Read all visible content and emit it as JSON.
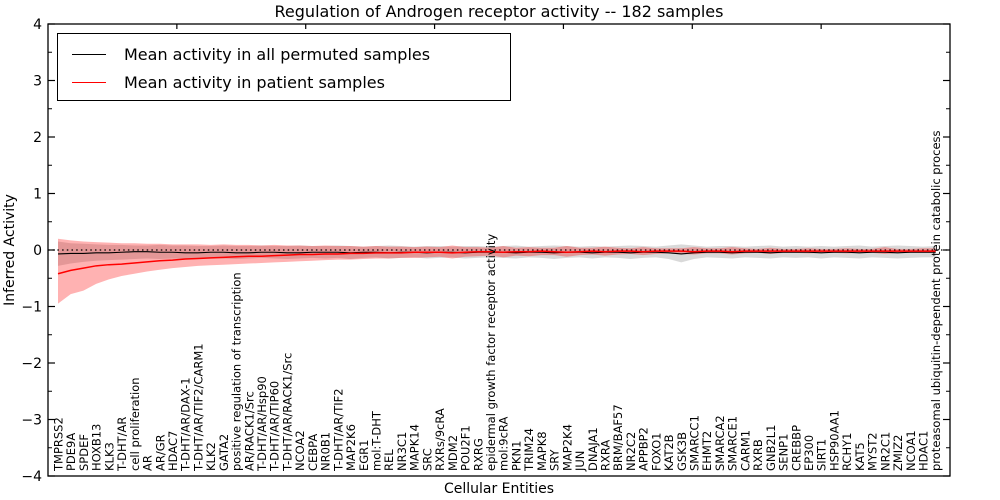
{
  "title": "Regulation of Androgen receptor activity -- 182 samples",
  "axes": {
    "xlabel": "Cellular Entities",
    "ylabel": "Inferred Activity",
    "yticks": [
      {
        "value": 4,
        "label": "4"
      },
      {
        "value": 3,
        "label": "3"
      },
      {
        "value": 2,
        "label": "2"
      },
      {
        "value": 1,
        "label": "1"
      },
      {
        "value": 0,
        "label": "0"
      },
      {
        "value": -1,
        "label": "−1"
      },
      {
        "value": -2,
        "label": "−2"
      },
      {
        "value": -3,
        "label": "−3"
      },
      {
        "value": -4,
        "label": "−4"
      }
    ]
  },
  "legend": {
    "items": [
      {
        "label": "Mean activity in all permuted samples",
        "color": "#000000"
      },
      {
        "label": "Mean activity in patient samples",
        "color": "#ff0000"
      }
    ]
  },
  "chart_data": {
    "type": "line",
    "title": "Regulation of Androgen receptor activity -- 182 samples",
    "xlabel": "Cellular Entities",
    "ylabel": "Inferred Activity",
    "ylim": [
      -4,
      4
    ],
    "grid": false,
    "legend_position": "upper left",
    "reference_line": {
      "y": 0,
      "style": "dotted",
      "color": "#000000"
    },
    "categories": [
      "TMPRSS2",
      "PDE9A",
      "SPDEF",
      "HOXB13",
      "KLK3",
      "T-DHT/AR",
      "cell proliferation",
      "AR",
      "AR/GR",
      "HDAC7",
      "T-DHT/AR/DAX-1",
      "T-DHT/AR/TIF2/CARM1",
      "KLK2",
      "GATA2",
      "positive regulation of transcription",
      "AR/RACK1/Src",
      "T-DHT/AR/Hsp90",
      "T-DHT/AR/TIP60",
      "T-DHT/AR/RACK1/Src",
      "NCOA2",
      "CEBPA",
      "NR0B1",
      "T-DHT/AR/TIF2",
      "MAP2K6",
      "EGR1",
      "mol:T-DHT",
      "REL",
      "NR3C1",
      "MAPK14",
      "SRC",
      "RXRs/9cRA",
      "MDM2",
      "POU2F1",
      "RXRG",
      "epidermal growth factor receptor activity",
      "mol:9cRA",
      "PKN1",
      "TRIM24",
      "MAPK8",
      "SRY",
      "MAP2K4",
      "JUN",
      "DNAJA1",
      "RXRA",
      "BRM/BAF57",
      "NR2C2",
      "APPBP2",
      "FOXO1",
      "KAT2B",
      "GSK3B",
      "SMARCC1",
      "EHMT2",
      "SMARCA2",
      "SMARCE1",
      "CARM1",
      "RXRB",
      "GNB2L1",
      "SENP1",
      "CREBBP",
      "EP300",
      "SIRT1",
      "HSP90AA1",
      "RCHY1",
      "KAT5",
      "MYST2",
      "NR2C1",
      "ZMIZ2",
      "NCOA1",
      "HDAC1",
      "proteasomal ubiquitin-dependent protein catabolic process"
    ],
    "series": [
      {
        "name": "Mean activity in all permuted samples",
        "line_color": "#000000",
        "band_color": "rgba(0,0,0,0.15)",
        "mean": [
          -0.07,
          -0.06,
          -0.06,
          -0.05,
          -0.05,
          -0.04,
          -0.03,
          -0.03,
          -0.04,
          -0.04,
          -0.05,
          -0.05,
          -0.04,
          -0.04,
          -0.05,
          -0.05,
          -0.04,
          -0.04,
          -0.05,
          -0.05,
          -0.04,
          -0.04,
          -0.04,
          -0.05,
          -0.04,
          -0.04,
          -0.05,
          -0.04,
          -0.04,
          -0.05,
          -0.04,
          -0.04,
          -0.05,
          -0.04,
          -0.04,
          -0.04,
          -0.05,
          -0.04,
          -0.04,
          -0.05,
          -0.04,
          -0.04,
          -0.05,
          -0.04,
          -0.04,
          -0.05,
          -0.04,
          -0.04,
          -0.05,
          -0.07,
          -0.05,
          -0.04,
          -0.04,
          -0.05,
          -0.04,
          -0.04,
          -0.05,
          -0.04,
          -0.04,
          -0.04,
          -0.05,
          -0.04,
          -0.04,
          -0.05,
          -0.04,
          -0.04,
          -0.05,
          -0.04,
          -0.04,
          -0.04
        ],
        "lower": [
          -0.28,
          -0.24,
          -0.21,
          -0.19,
          -0.18,
          -0.17,
          -0.16,
          -0.15,
          -0.16,
          -0.15,
          -0.16,
          -0.15,
          -0.14,
          -0.15,
          -0.16,
          -0.15,
          -0.14,
          -0.15,
          -0.16,
          -0.15,
          -0.14,
          -0.15,
          -0.14,
          -0.16,
          -0.14,
          -0.13,
          -0.15,
          -0.14,
          -0.13,
          -0.15,
          -0.14,
          -0.13,
          -0.15,
          -0.14,
          -0.13,
          -0.14,
          -0.15,
          -0.13,
          -0.14,
          -0.16,
          -0.14,
          -0.13,
          -0.15,
          -0.13,
          -0.14,
          -0.16,
          -0.14,
          -0.13,
          -0.16,
          -0.22,
          -0.16,
          -0.13,
          -0.14,
          -0.15,
          -0.13,
          -0.14,
          -0.15,
          -0.13,
          -0.14,
          -0.13,
          -0.15,
          -0.13,
          -0.14,
          -0.15,
          -0.13,
          -0.14,
          -0.15,
          -0.14,
          -0.13,
          -0.13
        ],
        "upper": [
          0.15,
          0.12,
          0.11,
          0.1,
          0.09,
          0.09,
          0.08,
          0.08,
          0.09,
          0.08,
          0.08,
          0.07,
          0.07,
          0.08,
          0.07,
          0.07,
          0.08,
          0.07,
          0.07,
          0.08,
          0.07,
          0.07,
          0.08,
          0.07,
          0.06,
          0.07,
          0.08,
          0.07,
          0.06,
          0.07,
          0.07,
          0.06,
          0.07,
          0.07,
          0.06,
          0.07,
          0.08,
          0.06,
          0.07,
          0.08,
          0.07,
          0.06,
          0.07,
          0.06,
          0.07,
          0.08,
          0.07,
          0.06,
          0.08,
          0.1,
          0.08,
          0.06,
          0.07,
          0.07,
          0.06,
          0.07,
          0.08,
          0.06,
          0.07,
          0.06,
          0.07,
          0.06,
          0.07,
          0.08,
          0.06,
          0.07,
          0.08,
          0.07,
          0.06,
          0.07
        ]
      },
      {
        "name": "Mean activity in patient samples",
        "line_color": "#ff0000",
        "band_color": "rgba(255,0,0,0.3)",
        "mean": [
          -0.42,
          -0.36,
          -0.32,
          -0.28,
          -0.26,
          -0.25,
          -0.23,
          -0.21,
          -0.19,
          -0.18,
          -0.16,
          -0.15,
          -0.14,
          -0.13,
          -0.12,
          -0.11,
          -0.11,
          -0.1,
          -0.09,
          -0.08,
          -0.08,
          -0.07,
          -0.07,
          -0.06,
          -0.06,
          -0.05,
          -0.05,
          -0.05,
          -0.04,
          -0.04,
          -0.04,
          -0.05,
          -0.04,
          -0.03,
          -0.03,
          -0.04,
          -0.03,
          -0.03,
          -0.02,
          -0.03,
          -0.04,
          -0.03,
          -0.02,
          -0.03,
          -0.02,
          -0.02,
          -0.03,
          -0.02,
          -0.02,
          -0.02,
          -0.03,
          -0.02,
          -0.02,
          -0.03,
          -0.02,
          -0.02,
          -0.02,
          -0.02,
          -0.02,
          -0.02,
          -0.02,
          -0.02,
          -0.02,
          -0.02,
          -0.02,
          -0.02,
          -0.02,
          -0.02,
          -0.02,
          -0.02
        ],
        "lower": [
          -0.95,
          -0.78,
          -0.72,
          -0.6,
          -0.52,
          -0.46,
          -0.42,
          -0.38,
          -0.35,
          -0.32,
          -0.3,
          -0.28,
          -0.27,
          -0.26,
          -0.25,
          -0.24,
          -0.23,
          -0.22,
          -0.21,
          -0.2,
          -0.19,
          -0.18,
          -0.17,
          -0.17,
          -0.16,
          -0.15,
          -0.15,
          -0.14,
          -0.14,
          -0.13,
          -0.12,
          -0.15,
          -0.12,
          -0.11,
          -0.1,
          -0.13,
          -0.1,
          -0.11,
          -0.09,
          -0.09,
          -0.12,
          -0.09,
          -0.08,
          -0.1,
          -0.08,
          -0.07,
          -0.09,
          -0.07,
          -0.06,
          -0.07,
          -0.08,
          -0.06,
          -0.06,
          -0.08,
          -0.06,
          -0.05,
          -0.07,
          -0.05,
          -0.05,
          -0.06,
          -0.05,
          -0.05,
          -0.06,
          -0.05,
          -0.05,
          -0.07,
          -0.05,
          -0.05,
          -0.05,
          -0.05
        ],
        "upper": [
          0.2,
          0.17,
          0.15,
          0.14,
          0.13,
          0.12,
          0.12,
          0.11,
          0.11,
          0.1,
          0.1,
          0.1,
          0.09,
          0.1,
          0.09,
          0.09,
          0.08,
          0.09,
          0.08,
          0.08,
          0.07,
          0.08,
          0.07,
          0.07,
          0.06,
          0.07,
          0.06,
          0.06,
          0.05,
          0.06,
          0.05,
          0.08,
          0.05,
          0.05,
          0.04,
          0.07,
          0.04,
          0.05,
          0.04,
          0.04,
          0.07,
          0.04,
          0.04,
          0.06,
          0.04,
          0.03,
          0.05,
          0.03,
          0.03,
          0.03,
          0.05,
          0.03,
          0.03,
          0.05,
          0.03,
          0.02,
          0.04,
          0.02,
          0.02,
          0.03,
          0.02,
          0.02,
          0.03,
          0.02,
          0.02,
          0.05,
          0.02,
          0.02,
          0.03,
          0.03
        ]
      }
    ]
  }
}
